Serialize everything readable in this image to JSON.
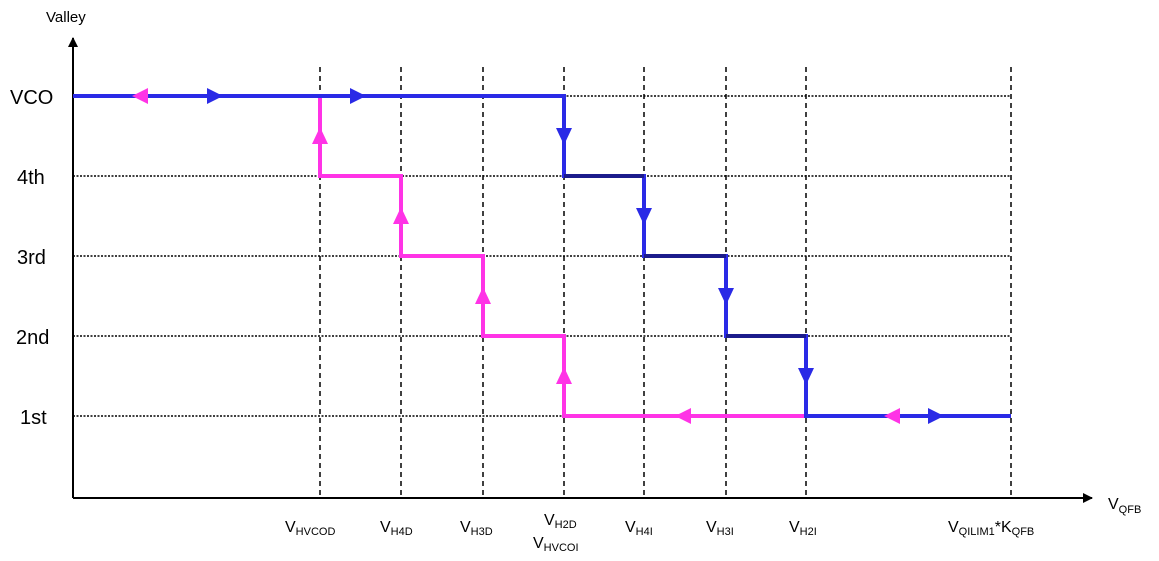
{
  "y_axis_label": "Valley",
  "x_axis_label": {
    "main": "V",
    "sub": "QFB"
  },
  "levels": [
    "VCO",
    "4th",
    "3rd",
    "2nd",
    "1st"
  ],
  "thresholds": [
    [
      {
        "main": "V",
        "sub": "HVCOD"
      }
    ],
    [
      {
        "main": "V",
        "sub": "H4D"
      }
    ],
    [
      {
        "main": "V",
        "sub": "H3D"
      }
    ],
    [
      {
        "main": "V",
        "sub": "H2D"
      },
      {
        "main": "V",
        "sub": "HVCOI"
      }
    ],
    [
      {
        "main": "V",
        "sub": "H4I"
      }
    ],
    [
      {
        "main": "V",
        "sub": "H3I"
      }
    ],
    [
      {
        "main": "V",
        "sub": "H2I"
      }
    ],
    [
      {
        "main": "V",
        "sub": "QILIM1"
      },
      {
        "main": "*K",
        "sub": "QFB"
      }
    ]
  ],
  "colors": {
    "increasing_path": "#2a2ae6",
    "decreasing_path": "#ff33e6",
    "overlap_path": "#1c1c8c",
    "grid": "#000000",
    "axis": "#000000"
  }
}
